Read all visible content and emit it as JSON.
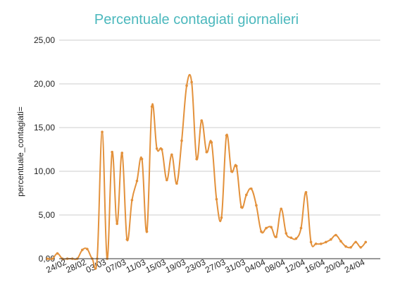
{
  "chart_data": {
    "type": "line",
    "title": "Percentuale contagiati giornalieri",
    "xlabel": "",
    "ylabel": "percentuale_contagiati=",
    "ylim": [
      0,
      25
    ],
    "y_ticks": [
      "0,00",
      "5,00",
      "10,00",
      "15,00",
      "20,00",
      "25,00"
    ],
    "y_tick_values": [
      0,
      5,
      10,
      15,
      20,
      25
    ],
    "x_tick_labels": [
      "24/02",
      "28/02",
      "03/03",
      "07/03",
      "11/03",
      "15/03",
      "19/03",
      "23/03",
      "27/03",
      "31/03",
      "04/04",
      "08/04",
      "12/04",
      "16/04",
      "20/04",
      "24/04"
    ],
    "x_tick_days": [
      0,
      4,
      8,
      12,
      16,
      20,
      24,
      28,
      32,
      36,
      40,
      44,
      48,
      52,
      56,
      60
    ],
    "grid": true,
    "legend": "none",
    "series": [
      {
        "color": "#e3913b",
        "points": [
          [
            -2,
            0.0
          ],
          [
            -1,
            0.0
          ],
          [
            0,
            0.6
          ],
          [
            1,
            0.0
          ],
          [
            2,
            0.0
          ],
          [
            3,
            0.0
          ],
          [
            4,
            0.0
          ],
          [
            5,
            1.0
          ],
          [
            6,
            1.1
          ],
          [
            7,
            0.0
          ],
          [
            8,
            0.0
          ],
          [
            9,
            14.5
          ],
          [
            10,
            0.0
          ],
          [
            11,
            12.2
          ],
          [
            12,
            4.0
          ],
          [
            13,
            12.1
          ],
          [
            14,
            2.2
          ],
          [
            15,
            6.7
          ],
          [
            16,
            8.9
          ],
          [
            17,
            11.4
          ],
          [
            18,
            3.1
          ],
          [
            19,
            17.4
          ],
          [
            20,
            12.6
          ],
          [
            21,
            12.5
          ],
          [
            22,
            9.0
          ],
          [
            23,
            11.9
          ],
          [
            24,
            8.6
          ],
          [
            25,
            13.5
          ],
          [
            26,
            19.8
          ],
          [
            27,
            20.2
          ],
          [
            28,
            11.4
          ],
          [
            29,
            15.8
          ],
          [
            30,
            12.2
          ],
          [
            31,
            13.3
          ],
          [
            32,
            6.8
          ],
          [
            33,
            4.7
          ],
          [
            34,
            14.1
          ],
          [
            35,
            10.0
          ],
          [
            36,
            10.6
          ],
          [
            37,
            5.9
          ],
          [
            38,
            7.3
          ],
          [
            39,
            8.0
          ],
          [
            40,
            6.1
          ],
          [
            41,
            3.1
          ],
          [
            42,
            3.5
          ],
          [
            43,
            3.6
          ],
          [
            44,
            2.5
          ],
          [
            45,
            5.7
          ],
          [
            46,
            2.9
          ],
          [
            47,
            2.4
          ],
          [
            48,
            2.3
          ],
          [
            49,
            3.5
          ],
          [
            50,
            7.6
          ],
          [
            51,
            1.9
          ],
          [
            52,
            1.7
          ],
          [
            53,
            1.7
          ],
          [
            54,
            1.9
          ],
          [
            55,
            2.2
          ],
          [
            56,
            2.7
          ],
          [
            57,
            2.0
          ],
          [
            58,
            1.4
          ],
          [
            59,
            1.3
          ],
          [
            60,
            1.9
          ],
          [
            61,
            1.3
          ],
          [
            62,
            1.9
          ]
        ]
      }
    ],
    "colors": {
      "title": "#4bb8bd",
      "line": "#e3913b",
      "grid": "#cccccc",
      "axis": "#333333",
      "text": "#222222"
    }
  }
}
